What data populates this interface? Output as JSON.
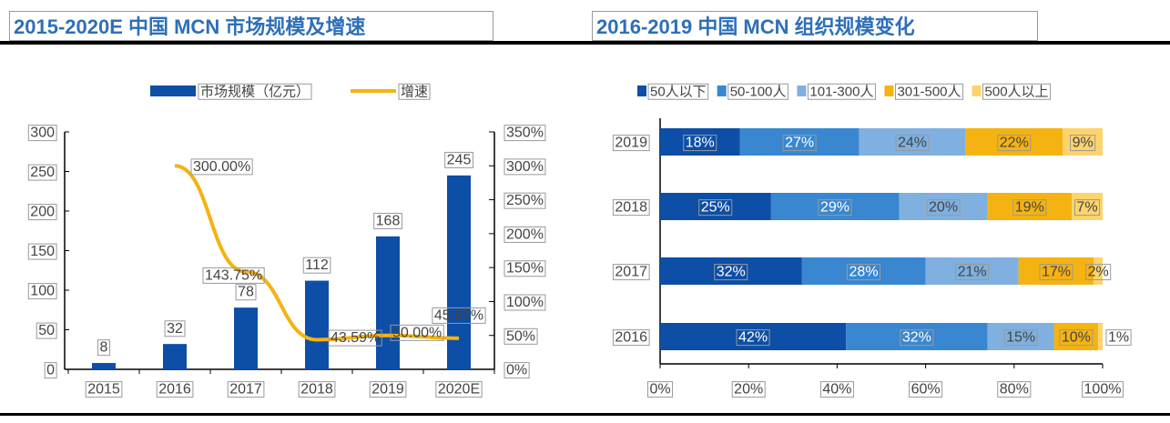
{
  "chart_data": [
    {
      "type": "bar+line",
      "title": "2015-2020E 中国 MCN 市场规模及增速",
      "categories": [
        "2015",
        "2016",
        "2017",
        "2018",
        "2019",
        "2020E"
      ],
      "series": [
        {
          "name": "市场规模（亿元）",
          "type": "bar",
          "axis": "left",
          "values": [
            8,
            32,
            78,
            112,
            168,
            245
          ],
          "labels": [
            "8",
            "32",
            "78",
            "112",
            "168",
            "245"
          ],
          "color": "#0d4ea6"
        },
        {
          "name": "增速",
          "type": "line",
          "axis": "right",
          "values": [
            null,
            300.0,
            143.75,
            43.59,
            50.0,
            45.83
          ],
          "labels": [
            "",
            "300.00%",
            "143.75%",
            "43.59%",
            "50.00%",
            "45.83%"
          ],
          "color": "#f5b311"
        }
      ],
      "left_axis": {
        "ylim": [
          0,
          300
        ],
        "ticks": [
          "0",
          "50",
          "100",
          "150",
          "200",
          "250",
          "300"
        ]
      },
      "right_axis": {
        "ylim": [
          0,
          350
        ],
        "ticks": [
          "0%",
          "50%",
          "100%",
          "150%",
          "200%",
          "250%",
          "300%",
          "350%"
        ]
      },
      "legend": "top"
    },
    {
      "type": "stacked-bar-horizontal",
      "title": "2016-2019 中国 MCN 组织规模变化",
      "categories": [
        "2019",
        "2018",
        "2017",
        "2016"
      ],
      "series": [
        {
          "name": "50人以下",
          "values": [
            18,
            25,
            32,
            42
          ],
          "color": "#0d4ea6"
        },
        {
          "name": "50-100人",
          "values": [
            27,
            29,
            28,
            32
          ],
          "color": "#3a87d1"
        },
        {
          "name": "101-300人",
          "values": [
            24,
            20,
            21,
            15
          ],
          "color": "#7fb0e0"
        },
        {
          "name": "301-500人",
          "values": [
            22,
            19,
            17,
            10
          ],
          "color": "#f5b311"
        },
        {
          "name": "500人以上",
          "values": [
            9,
            7,
            2,
            1
          ],
          "color": "#fdd46b"
        }
      ],
      "xlim": [
        0,
        100
      ],
      "xticks": [
        "0%",
        "20%",
        "40%",
        "60%",
        "80%",
        "100%"
      ],
      "legend": "top"
    }
  ]
}
